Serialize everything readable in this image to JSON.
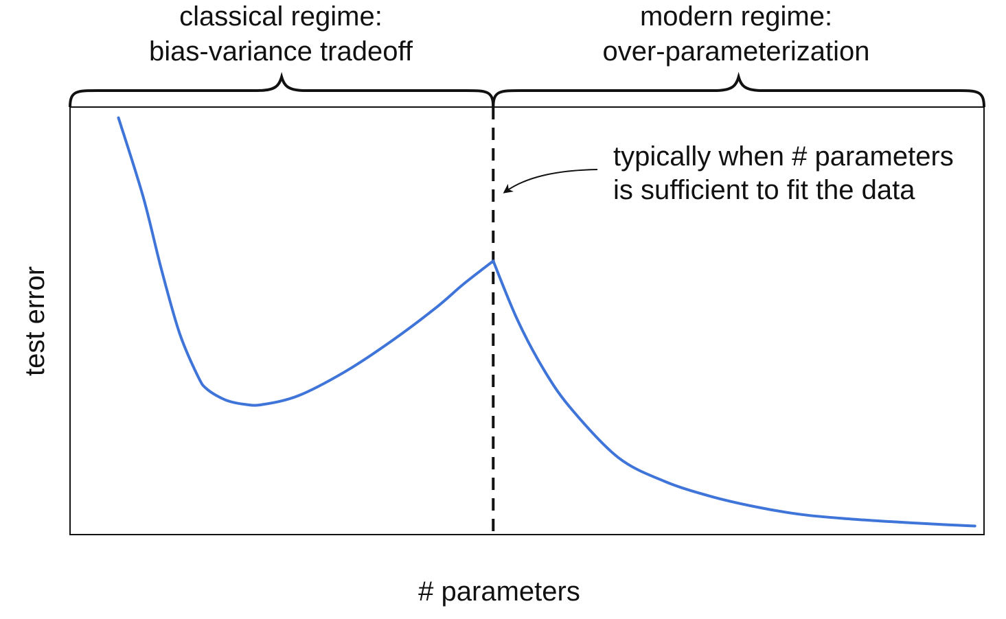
{
  "chart_data": {
    "type": "line",
    "title": "",
    "xlabel": "# parameters",
    "ylabel": "test error",
    "xlim": [
      0,
      1
    ],
    "ylim": [
      0,
      1
    ],
    "grid": false,
    "legend": "none",
    "series": [
      {
        "color": "#3f74d8",
        "x": [
          0.053,
          0.08,
          0.1,
          0.12,
          0.14,
          0.15,
          0.17,
          0.19,
          0.21,
          0.25,
          0.3,
          0.35,
          0.4,
          0.43,
          0.463,
          0.49,
          0.52,
          0.55,
          0.6,
          0.65,
          0.7,
          0.75,
          0.8,
          0.85,
          0.9,
          0.95,
          0.99
        ],
        "y": [
          0.975,
          0.79,
          0.62,
          0.47,
          0.37,
          0.34,
          0.315,
          0.305,
          0.304,
          0.325,
          0.38,
          0.45,
          0.53,
          0.585,
          0.64,
          0.5,
          0.38,
          0.29,
          0.18,
          0.125,
          0.09,
          0.065,
          0.047,
          0.037,
          0.03,
          0.024,
          0.02
        ]
      }
    ],
    "reference_lines": [
      {
        "orientation": "vertical",
        "x": 0.463,
        "style": "dashed",
        "color": "#111111"
      }
    ],
    "annotations": {
      "classical_regime": {
        "line1": "classical regime:",
        "line2": "bias-variance tradeoff",
        "span": [
          0,
          0.463
        ]
      },
      "modern_regime": {
        "line1": "modern regime:",
        "line2": "over-parameterization",
        "span": [
          0.463,
          1
        ]
      },
      "threshold_note": {
        "line1": "typically when # parameters",
        "line2": "is sufficient to fit the data",
        "points_to_x": 0.463
      }
    }
  }
}
